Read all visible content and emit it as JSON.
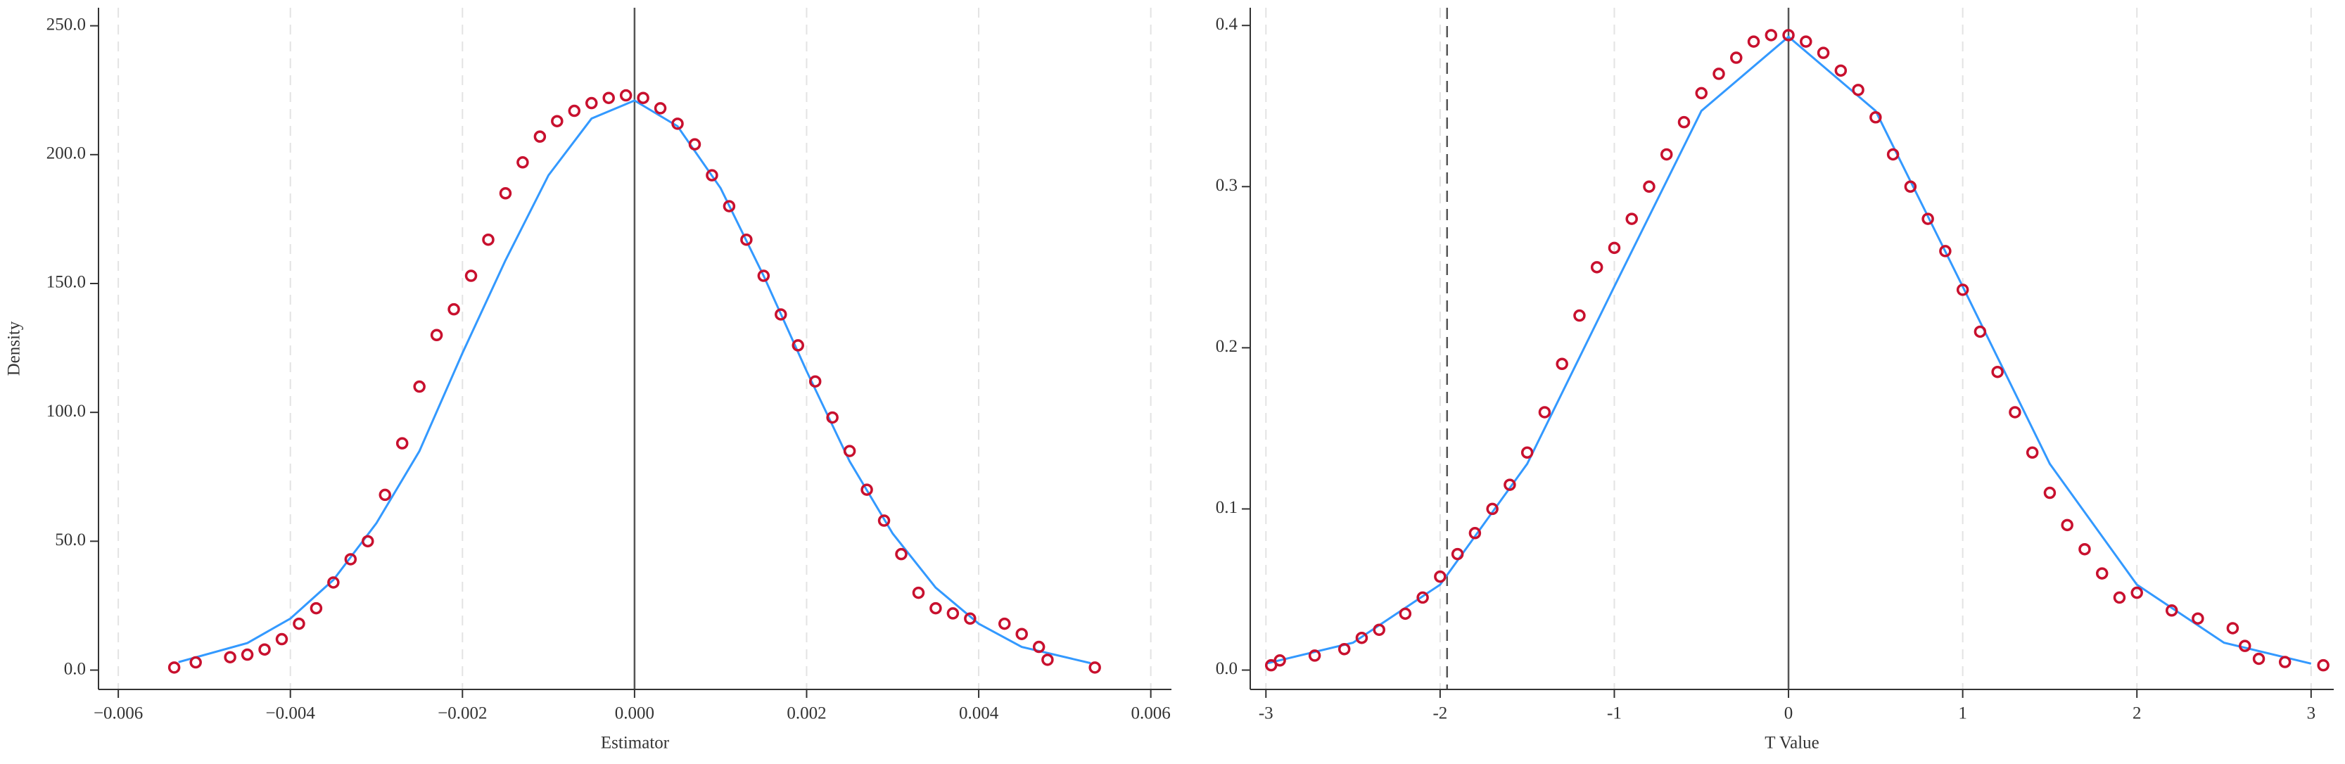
{
  "chart_data": [
    {
      "type": "scatter",
      "xlabel": "Estimator",
      "ylabel": "Density",
      "xlim": [
        -0.00623,
        0.00624
      ],
      "ylim": [
        -7.5,
        257
      ],
      "xticks": [
        {
          "value": -0.006,
          "label": "−0.006"
        },
        {
          "value": -0.004,
          "label": "−0.004"
        },
        {
          "value": -0.002,
          "label": "−0.002"
        },
        {
          "value": 0,
          "label": "0.000"
        },
        {
          "value": 0.002,
          "label": "0.002"
        },
        {
          "value": 0.004,
          "label": "0.004"
        },
        {
          "value": 0.006,
          "label": "0.006"
        }
      ],
      "yticks": [
        {
          "value": 0,
          "label": "0.0"
        },
        {
          "value": 50,
          "label": "50.0"
        },
        {
          "value": 100,
          "label": "100.0"
        },
        {
          "value": 150,
          "label": "150.0"
        },
        {
          "value": 200,
          "label": "200.0"
        },
        {
          "value": 250,
          "label": "250.0"
        }
      ],
      "grid": "x",
      "vlines": [
        {
          "value": 0,
          "style": "solid"
        }
      ],
      "series": [
        {
          "type": "scatter",
          "color": "#c8102e",
          "x": [
            -0.00535,
            -0.0051,
            -0.0047,
            -0.0045,
            -0.0043,
            -0.0041,
            -0.0039,
            -0.0037,
            -0.0035,
            -0.0033,
            -0.0031,
            -0.0029,
            -0.0027,
            -0.0025,
            -0.0023,
            -0.0021,
            -0.0019,
            -0.0017,
            -0.0015,
            -0.0013,
            -0.0011,
            -0.0009,
            -0.0007,
            -0.0005,
            -0.0003,
            -0.0001,
            0.0001,
            0.0003,
            0.0005,
            0.0007,
            0.0009,
            0.0011,
            0.0013,
            0.0015,
            0.0017,
            0.0019,
            0.0021,
            0.0023,
            0.0025,
            0.0027,
            0.0029,
            0.0031,
            0.0033,
            0.0035,
            0.0037,
            0.0039,
            0.0043,
            0.0045,
            0.0047,
            0.0048,
            0.00535
          ],
          "values": [
            1,
            3,
            5,
            6,
            8,
            12,
            18,
            24,
            34,
            43,
            50,
            68,
            88,
            110,
            130,
            140,
            153,
            167,
            185,
            197,
            207,
            213,
            217,
            220,
            222,
            223,
            222,
            218,
            212,
            204,
            192,
            180,
            167,
            153,
            138,
            126,
            112,
            98,
            85,
            70,
            58,
            45,
            30,
            24,
            22,
            20,
            18,
            14,
            9,
            4,
            1
          ]
        },
        {
          "type": "line",
          "color": "#3399ff",
          "x": [
            -0.0053,
            -0.0045,
            -0.004,
            -0.0035,
            -0.003,
            -0.0025,
            -0.002,
            -0.0015,
            -0.001,
            -0.0005,
            0,
            0.0005,
            0.001,
            0.0015,
            0.002,
            0.0025,
            0.003,
            0.0035,
            0.004,
            0.0045,
            0.0053
          ],
          "values": [
            3.1,
            10.5,
            20,
            35,
            57,
            85,
            123,
            159,
            192,
            214,
            221,
            211,
            187,
            153,
            116,
            81,
            53,
            32,
            18,
            9,
            2.7
          ]
        }
      ]
    },
    {
      "type": "scatter",
      "xlabel": "T Value",
      "xlim": [
        -3.09,
        3.13
      ],
      "ylim": [
        -0.012,
        0.411
      ],
      "xticks": [
        -3,
        -2,
        -1,
        0,
        1,
        2,
        3
      ],
      "yticks": [
        {
          "value": 0,
          "label": "0.0"
        },
        0.1,
        0.2,
        0.3,
        0.4
      ],
      "grid": "x",
      "vlines": [
        {
          "value": 0,
          "style": "solid"
        },
        {
          "value": -1.96,
          "style": "dashed"
        }
      ],
      "series": [
        {
          "type": "scatter",
          "color": "#c8102e",
          "x": [
            -2.97,
            -2.92,
            -2.72,
            -2.55,
            -2.45,
            -2.35,
            -2.2,
            -2.1,
            -2.0,
            -1.9,
            -1.8,
            -1.7,
            -1.6,
            -1.5,
            -1.4,
            -1.3,
            -1.2,
            -1.1,
            -1.0,
            -0.9,
            -0.8,
            -0.7,
            -0.6,
            -0.5,
            -0.4,
            -0.3,
            -0.2,
            -0.1,
            0,
            0.1,
            0.2,
            0.3,
            0.4,
            0.5,
            0.6,
            0.7,
            0.8,
            0.9,
            1.0,
            1.1,
            1.2,
            1.3,
            1.4,
            1.5,
            1.6,
            1.7,
            1.8,
            1.9,
            2.0,
            2.2,
            2.35,
            2.55,
            2.62,
            2.7,
            2.85,
            3.07
          ],
          "values": [
            0.003,
            0.006,
            0.009,
            0.013,
            0.02,
            0.025,
            0.035,
            0.045,
            0.058,
            0.072,
            0.085,
            0.1,
            0.115,
            0.135,
            0.16,
            0.19,
            0.22,
            0.25,
            0.262,
            0.28,
            0.3,
            0.32,
            0.34,
            0.358,
            0.37,
            0.38,
            0.39,
            0.394,
            0.394,
            0.39,
            0.383,
            0.372,
            0.36,
            0.343,
            0.32,
            0.3,
            0.28,
            0.26,
            0.236,
            0.21,
            0.185,
            0.16,
            0.135,
            0.11,
            0.09,
            0.075,
            0.06,
            0.045,
            0.048,
            0.037,
            0.032,
            0.026,
            0.015,
            0.007,
            0.005,
            0.003
          ]
        },
        {
          "type": "line",
          "color": "#3399ff",
          "x": [
            -3,
            -2.5,
            -2,
            -1.5,
            -1,
            -0.5,
            0,
            0.5,
            1,
            1.5,
            2,
            2.5,
            3
          ],
          "values": [
            0.004,
            0.017,
            0.053,
            0.128,
            0.238,
            0.347,
            0.393,
            0.347,
            0.238,
            0.128,
            0.053,
            0.017,
            0.004
          ]
        }
      ]
    }
  ]
}
